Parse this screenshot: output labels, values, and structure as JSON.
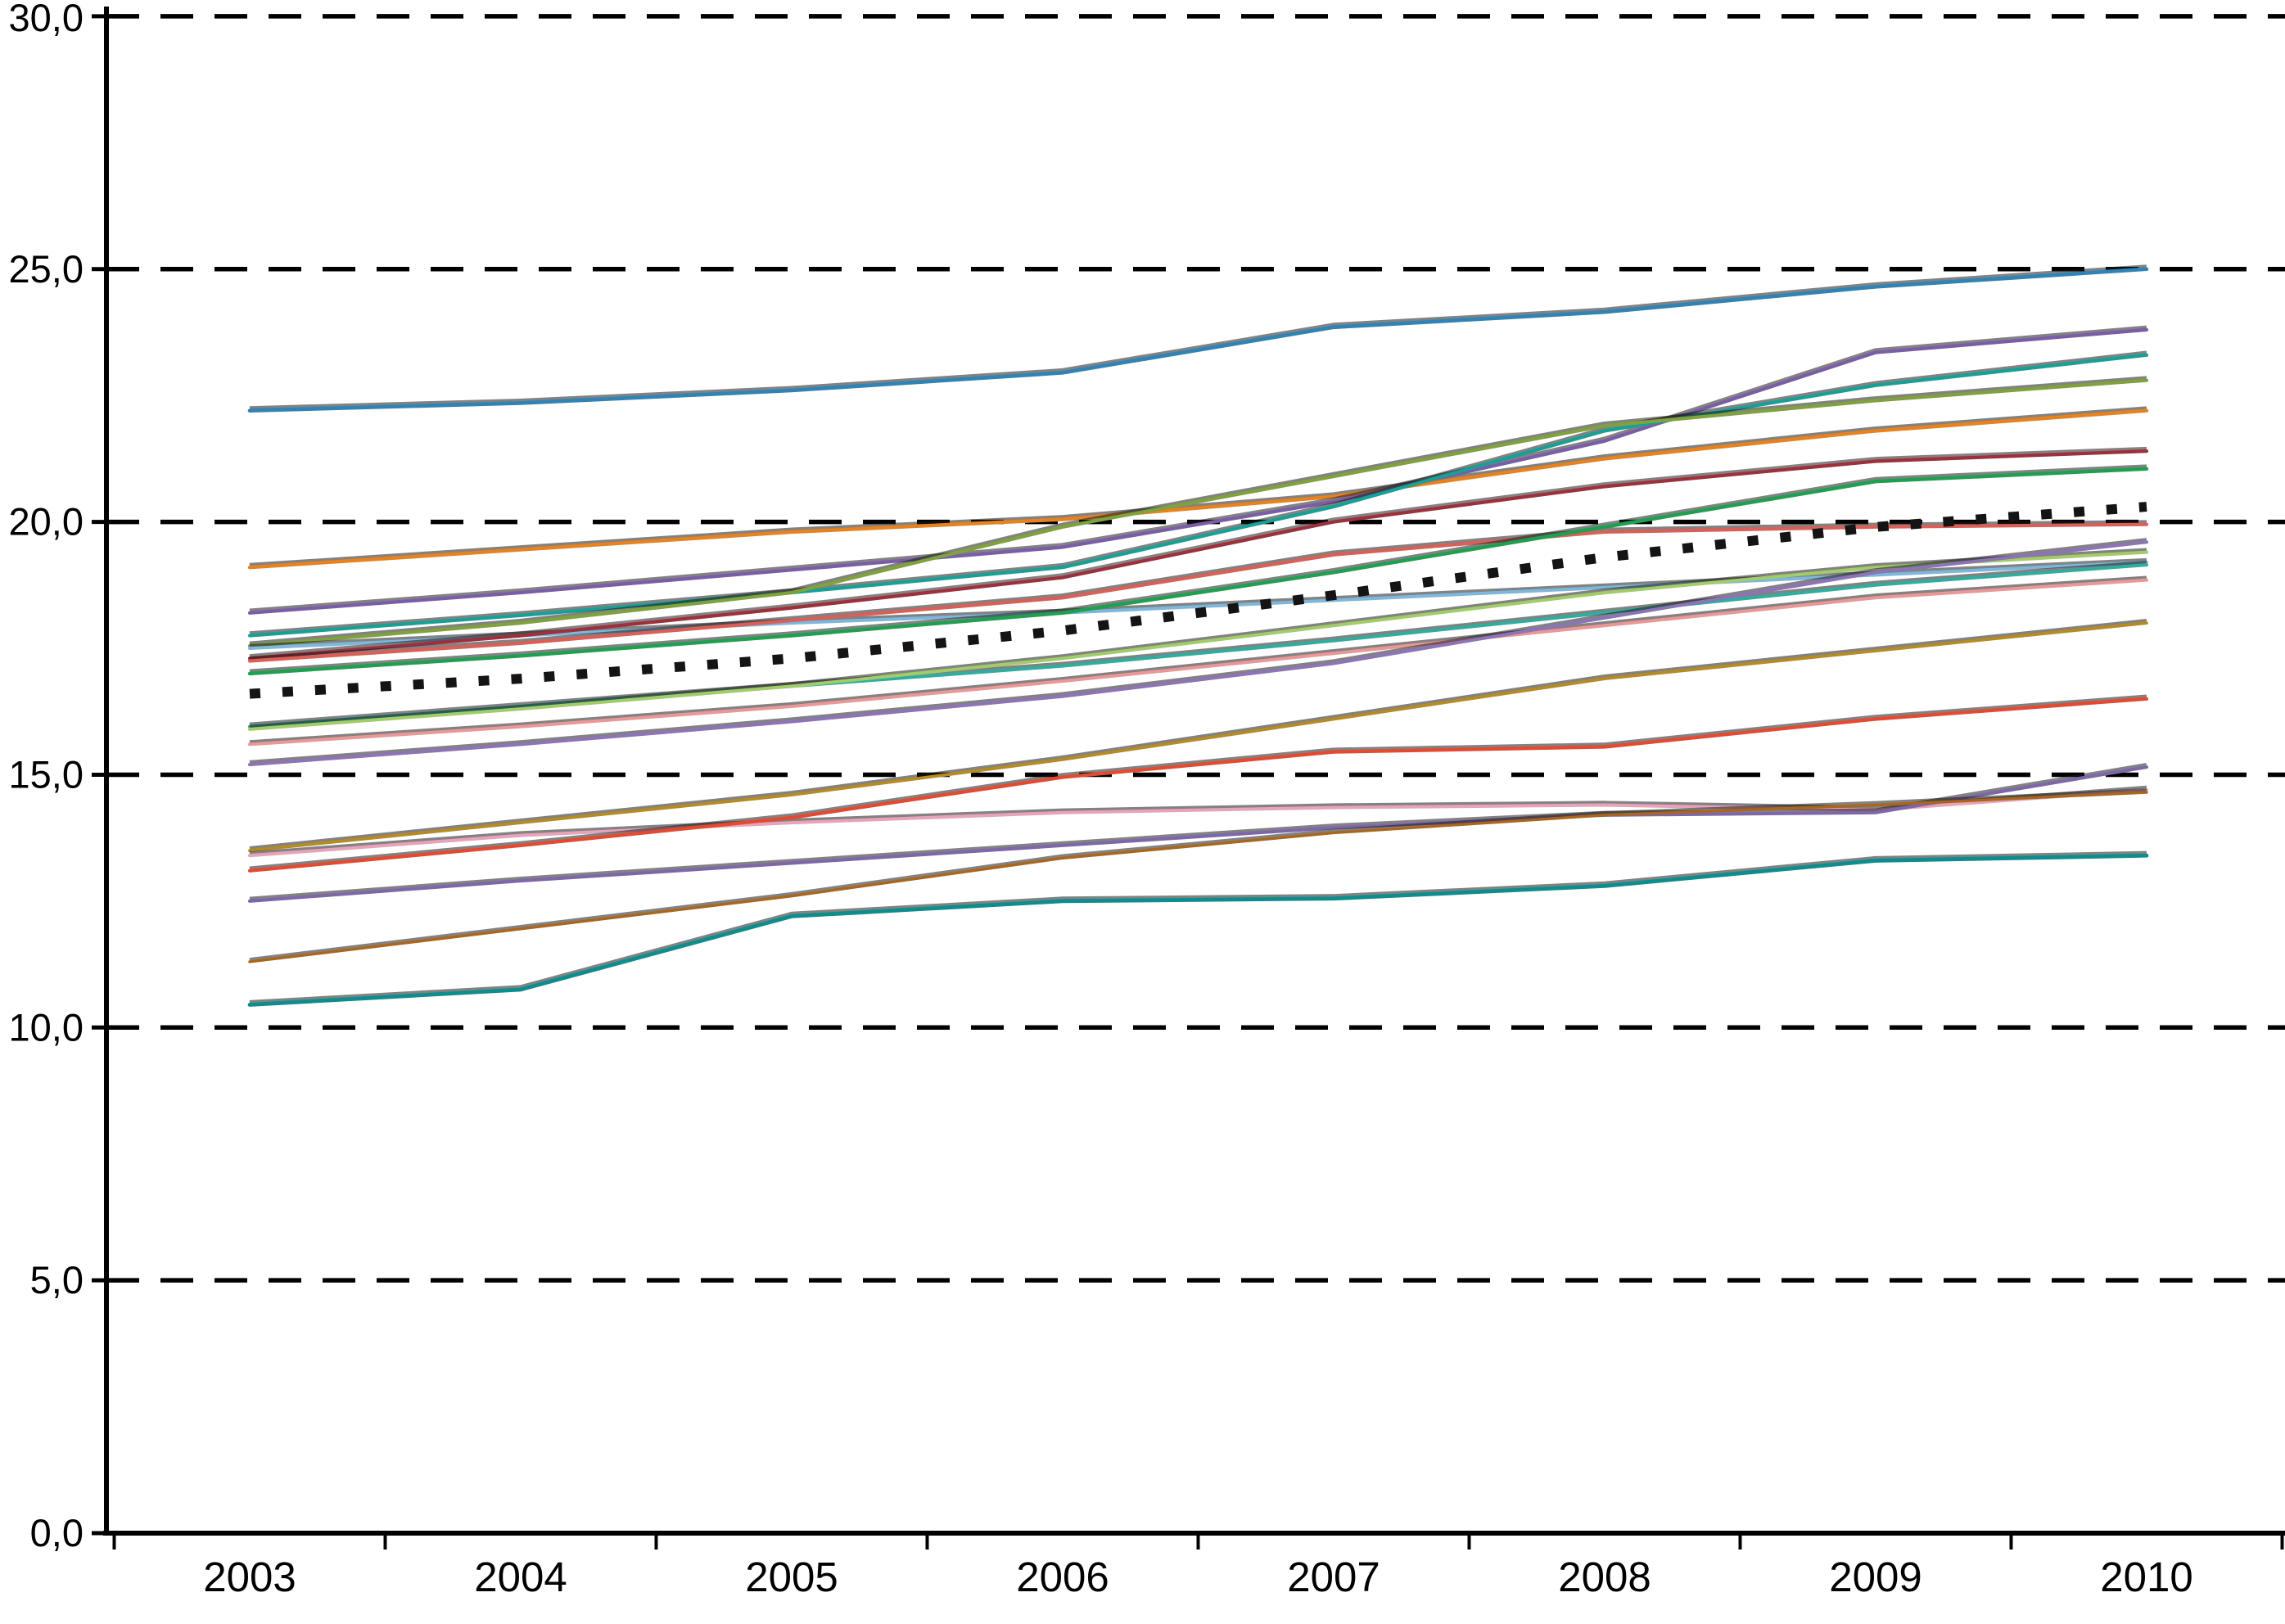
{
  "chart_data": {
    "type": "line",
    "title": "",
    "xlabel": "",
    "ylabel": "",
    "background_color": "#ffffff",
    "axis_color": "#000000",
    "grid": {
      "horizontal_dashed": true,
      "color": "#000000",
      "dash_pattern": "40 26",
      "shown_at": [
        5,
        10,
        15,
        20,
        25,
        30
      ]
    },
    "legend": "none",
    "decimal_separator": ",",
    "x": [
      2003,
      2004,
      2005,
      2006,
      2007,
      2008,
      2009,
      2010
    ],
    "x_labels": [
      "2003",
      "2004",
      "2005",
      "2006",
      "2007",
      "2008",
      "2009",
      "2010"
    ],
    "y_axis": {
      "min": 0,
      "max": 30,
      "step": 5,
      "tick_values": [
        0,
        5,
        10,
        15,
        20,
        25,
        30
      ],
      "tick_labels": [
        "0,0",
        "5,0",
        "10,0",
        "15,0",
        "20,0",
        "25,0",
        "30,0"
      ]
    },
    "series": [
      {
        "name": "series-01-steel-blue",
        "color": "#2f83b5",
        "style": "solid",
        "width": 4.6,
        "values": [
          22.2,
          22.35,
          22.6,
          22.95,
          23.85,
          24.15,
          24.65,
          25.0
        ]
      },
      {
        "name": "series-02-orange",
        "color": "#e8821e",
        "style": "solid",
        "width": 4.4,
        "values": [
          19.1,
          19.45,
          19.8,
          20.05,
          20.5,
          21.25,
          21.8,
          22.2
        ]
      },
      {
        "name": "series-03-purple",
        "color": "#7a5da8",
        "style": "solid",
        "width": 4.2,
        "values": [
          18.2,
          18.6,
          19.05,
          19.5,
          20.4,
          21.6,
          23.35,
          23.8
        ]
      },
      {
        "name": "series-04-teal",
        "color": "#17a096",
        "style": "solid",
        "width": 4.2,
        "values": [
          17.75,
          18.15,
          18.6,
          19.1,
          20.3,
          21.8,
          22.7,
          23.3
        ]
      },
      {
        "name": "series-05-olive-green",
        "color": "#7fa23c",
        "style": "solid",
        "width": 4.2,
        "values": [
          17.55,
          18.0,
          18.6,
          19.9,
          20.9,
          21.9,
          22.4,
          22.8
        ]
      },
      {
        "name": "series-06-light-blue",
        "color": "#7db8dc",
        "style": "solid",
        "width": 4.0,
        "values": [
          17.5,
          17.75,
          18.0,
          18.2,
          18.45,
          18.7,
          18.95,
          19.2
        ]
      },
      {
        "name": "series-07-maroon",
        "color": "#9e2f3c",
        "style": "solid",
        "width": 4.2,
        "values": [
          17.3,
          17.75,
          18.3,
          18.9,
          20.0,
          20.7,
          21.2,
          21.4
        ]
      },
      {
        "name": "series-08-red",
        "color": "#d95f57",
        "style": "solid",
        "width": 4.2,
        "values": [
          17.25,
          17.6,
          18.05,
          18.5,
          19.35,
          19.8,
          19.9,
          19.95
        ]
      },
      {
        "name": "series-09-green",
        "color": "#1fa050",
        "style": "solid",
        "width": 4.4,
        "values": [
          17.0,
          17.35,
          17.75,
          18.2,
          19.0,
          19.9,
          20.8,
          21.05
        ]
      },
      {
        "name": "series-10-teal-mid",
        "color": "#2fae9f",
        "style": "solid",
        "width": 4.0,
        "values": [
          15.95,
          16.35,
          16.75,
          17.15,
          17.65,
          18.2,
          18.75,
          19.15
        ]
      },
      {
        "name": "series-11-light-green",
        "color": "#a2cc68",
        "style": "solid",
        "width": 4.0,
        "values": [
          15.9,
          16.3,
          16.75,
          17.3,
          17.95,
          18.6,
          19.1,
          19.4
        ]
      },
      {
        "name": "series-12-salmon",
        "color": "#ec9797",
        "style": "solid",
        "width": 4.0,
        "values": [
          15.6,
          15.95,
          16.35,
          16.85,
          17.4,
          17.95,
          18.5,
          18.85
        ]
      },
      {
        "name": "series-13-purple-mid",
        "color": "#8d73b8",
        "style": "solid",
        "width": 4.0,
        "values": [
          15.2,
          15.6,
          16.05,
          16.55,
          17.2,
          18.1,
          19.0,
          19.6
        ]
      },
      {
        "name": "series-14-dark-yellow",
        "color": "#b78b22",
        "style": "solid",
        "width": 3.8,
        "values": [
          13.5,
          14.05,
          14.6,
          15.3,
          16.1,
          16.9,
          17.45,
          18.0
        ]
      },
      {
        "name": "series-15-pink",
        "color": "#e8a3b8",
        "style": "solid",
        "width": 4.0,
        "values": [
          13.4,
          13.8,
          14.05,
          14.25,
          14.35,
          14.4,
          14.3,
          14.7
        ]
      },
      {
        "name": "series-16-bright-red",
        "color": "#e5492f",
        "style": "solid",
        "width": 4.2,
        "values": [
          13.1,
          13.6,
          14.15,
          14.95,
          15.45,
          15.55,
          16.1,
          16.5
        ]
      },
      {
        "name": "series-17-purple-low",
        "color": "#7e66ab",
        "style": "solid",
        "width": 4.0,
        "values": [
          12.5,
          12.9,
          13.25,
          13.6,
          13.95,
          14.2,
          14.25,
          15.15
        ]
      },
      {
        "name": "series-18-brown",
        "color": "#ab661c",
        "style": "solid",
        "width": 3.4,
        "values": [
          11.3,
          11.95,
          12.6,
          13.35,
          13.85,
          14.2,
          14.4,
          14.65
        ]
      },
      {
        "name": "series-19-teal-low",
        "color": "#0d8d8d",
        "style": "solid",
        "width": 4.8,
        "values": [
          10.45,
          10.75,
          12.2,
          12.5,
          12.55,
          12.8,
          13.3,
          13.4
        ]
      },
      {
        "name": "series-20-dotted-average",
        "color": "#141414",
        "style": "dotted",
        "width": 12,
        "values": [
          16.6,
          16.9,
          17.3,
          17.85,
          18.55,
          19.3,
          19.9,
          20.3
        ]
      }
    ]
  }
}
